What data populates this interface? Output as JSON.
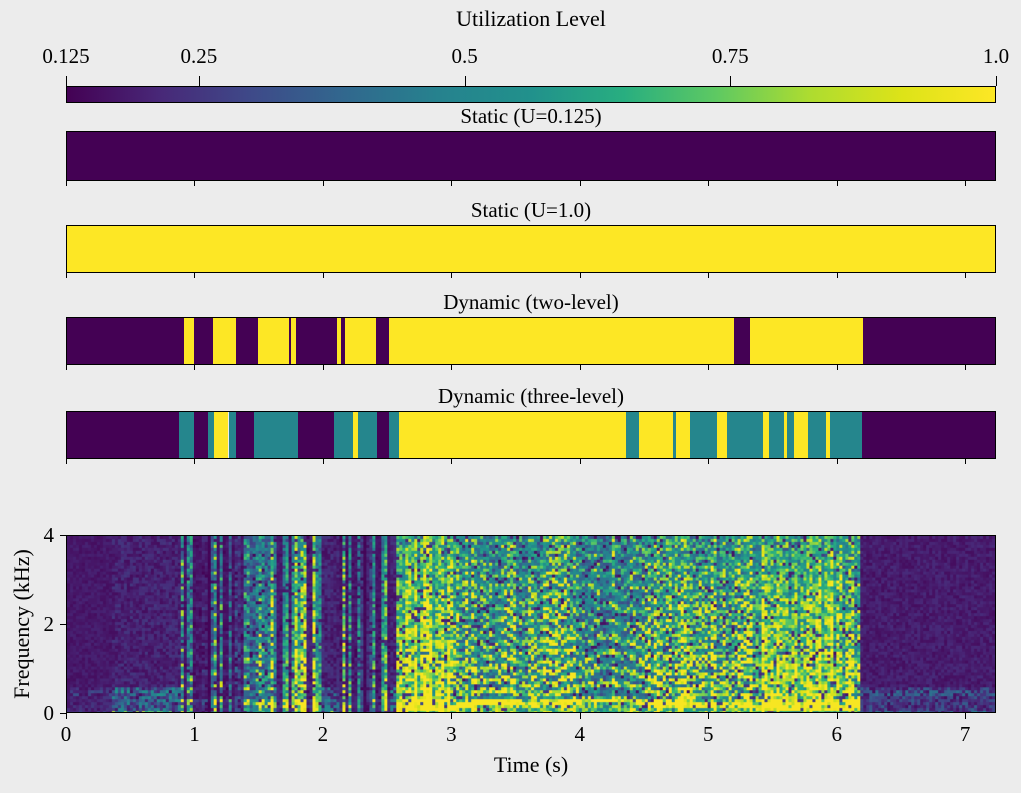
{
  "figure": {
    "title": "Utilization Level",
    "background": "#ececec",
    "text_color": "#000000",
    "viridis_stops": [
      "#440154",
      "#482878",
      "#3e4a89",
      "#31688e",
      "#26828e",
      "#21918c",
      "#28ae80",
      "#5ec962",
      "#addc30",
      "#dde318",
      "#fde725"
    ]
  },
  "chart_data": {
    "type": "heatmap",
    "title": "Utilization Level",
    "colorbar": {
      "tick_labels": [
        "0.125",
        "0.25",
        "0.5",
        "0.75",
        "1.0"
      ],
      "tick_values": [
        0.125,
        0.25,
        0.5,
        0.75,
        1.0
      ],
      "value_range": [
        0.125,
        1.0
      ],
      "orientation": "horizontal",
      "position": "top"
    },
    "utilization_colors": {
      "0.125": "#440154",
      "0.5": "#25868d",
      "1": "#fde725"
    },
    "x_range": [
      0,
      7.24
    ],
    "panels": [
      {
        "title": "Static (U=0.125)",
        "segments": [
          [
            0,
            7.24,
            0.125
          ]
        ]
      },
      {
        "title": "Static (U=1.0)",
        "segments": [
          [
            0,
            7.24,
            1.0
          ]
        ]
      },
      {
        "title": "Dynamic (two-level)",
        "segments": [
          [
            0,
            0.91,
            0.125
          ],
          [
            0.91,
            0.99,
            1.0
          ],
          [
            0.99,
            1.14,
            0.125
          ],
          [
            1.14,
            1.32,
            1.0
          ],
          [
            1.32,
            1.49,
            0.125
          ],
          [
            1.49,
            1.73,
            1.0
          ],
          [
            1.73,
            1.75,
            0.125
          ],
          [
            1.75,
            1.79,
            1.0
          ],
          [
            1.79,
            2.11,
            0.125
          ],
          [
            2.11,
            2.14,
            1.0
          ],
          [
            2.14,
            2.17,
            0.125
          ],
          [
            2.17,
            2.41,
            1.0
          ],
          [
            2.41,
            2.51,
            0.125
          ],
          [
            2.51,
            5.2,
            1.0
          ],
          [
            5.2,
            5.33,
            0.125
          ],
          [
            5.33,
            6.21,
            1.0
          ],
          [
            6.21,
            7.24,
            0.125
          ]
        ]
      },
      {
        "title": "Dynamic (three-level)",
        "segments": [
          [
            0,
            0.87,
            0.125
          ],
          [
            0.87,
            0.99,
            0.5
          ],
          [
            0.99,
            1.1,
            0.125
          ],
          [
            1.1,
            1.15,
            0.5
          ],
          [
            1.15,
            1.26,
            1.0
          ],
          [
            1.26,
            1.32,
            0.5
          ],
          [
            1.32,
            1.46,
            0.125
          ],
          [
            1.46,
            1.8,
            0.5
          ],
          [
            1.8,
            2.08,
            0.125
          ],
          [
            2.08,
            2.23,
            0.5
          ],
          [
            2.23,
            2.27,
            1.0
          ],
          [
            2.27,
            2.42,
            0.5
          ],
          [
            2.42,
            2.51,
            0.125
          ],
          [
            2.51,
            2.59,
            0.5
          ],
          [
            2.59,
            4.36,
            1.0
          ],
          [
            4.36,
            4.46,
            0.5
          ],
          [
            4.46,
            4.73,
            1.0
          ],
          [
            4.73,
            4.75,
            0.5
          ],
          [
            4.75,
            4.86,
            1.0
          ],
          [
            4.86,
            5.07,
            0.5
          ],
          [
            5.07,
            5.15,
            1.0
          ],
          [
            5.15,
            5.43,
            0.5
          ],
          [
            5.43,
            5.48,
            1.0
          ],
          [
            5.48,
            5.59,
            0.5
          ],
          [
            5.59,
            5.62,
            1.0
          ],
          [
            5.62,
            5.67,
            0.5
          ],
          [
            5.67,
            5.78,
            1.0
          ],
          [
            5.78,
            5.92,
            0.5
          ],
          [
            5.92,
            5.95,
            1.0
          ],
          [
            5.95,
            6.2,
            0.5
          ],
          [
            6.2,
            7.24,
            0.125
          ]
        ]
      }
    ],
    "spectrogram": {
      "xlabel": "Time (s)",
      "ylabel": "Frequency (kHz)",
      "xtick_labels": [
        "0",
        "1",
        "2",
        "3",
        "4",
        "5",
        "6",
        "7"
      ],
      "xticks": [
        0,
        1,
        2,
        3,
        4,
        5,
        6,
        7
      ],
      "ytick_labels": [
        "0",
        "2",
        "4"
      ],
      "yticks": [
        0,
        2,
        4
      ],
      "x_range": [
        0,
        7.24
      ],
      "y_range": [
        0,
        4
      ],
      "active_interval": [
        0.9,
        6.18
      ],
      "activity": [
        [
          0,
          0.35,
          0.02
        ],
        [
          0.35,
          0.88,
          0.1
        ],
        [
          0.88,
          1.06,
          0.85
        ],
        [
          1.06,
          1.12,
          0.18
        ],
        [
          1.12,
          1.3,
          0.8
        ],
        [
          1.3,
          1.38,
          0.25
        ],
        [
          1.38,
          1.52,
          0.75
        ],
        [
          1.52,
          1.98,
          0.92
        ],
        [
          1.98,
          2.12,
          0.1
        ],
        [
          2.12,
          2.3,
          0.8
        ],
        [
          2.3,
          2.38,
          0.22
        ],
        [
          2.38,
          2.52,
          0.72
        ],
        [
          2.52,
          2.58,
          0.1
        ],
        [
          2.58,
          6.18,
          1.0
        ],
        [
          6.18,
          7.24,
          0.05
        ]
      ],
      "seed": 1337
    }
  }
}
